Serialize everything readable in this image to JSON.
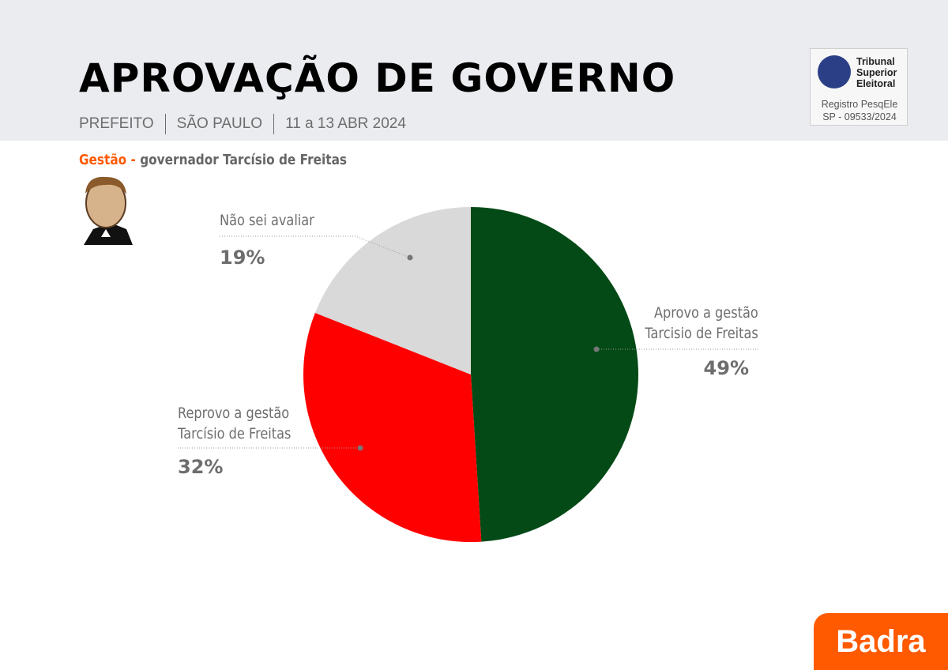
{
  "header": {
    "title": "APROVAÇÃO DE GOVERNO",
    "subtitle_parts": [
      "PREFEITO",
      "SÃO PAULO",
      "11 a 13 ABR 2024"
    ]
  },
  "badge": {
    "name_lines": [
      "Tribunal",
      "Superior",
      "Eleitoral"
    ],
    "registry_lines": [
      "Registro PesqEle",
      "SP - 09533/2024"
    ]
  },
  "chart_data": {
    "type": "pie",
    "title_prefix": "Gestão -",
    "title": "governador Tarcísio de Freitas",
    "categories": [
      "Aprovo a gestão\nTarcisio de Freitas",
      "Reprovo a gestão\nTarcísio de Freitas",
      "Não sei avaliar"
    ],
    "values": [
      49,
      32,
      19
    ],
    "value_labels": [
      "49%",
      "32%",
      "19%"
    ],
    "colors": [
      "#034a16",
      "#ff0000",
      "#d9d9d9"
    ]
  },
  "footer": {
    "brand": "Badra"
  }
}
